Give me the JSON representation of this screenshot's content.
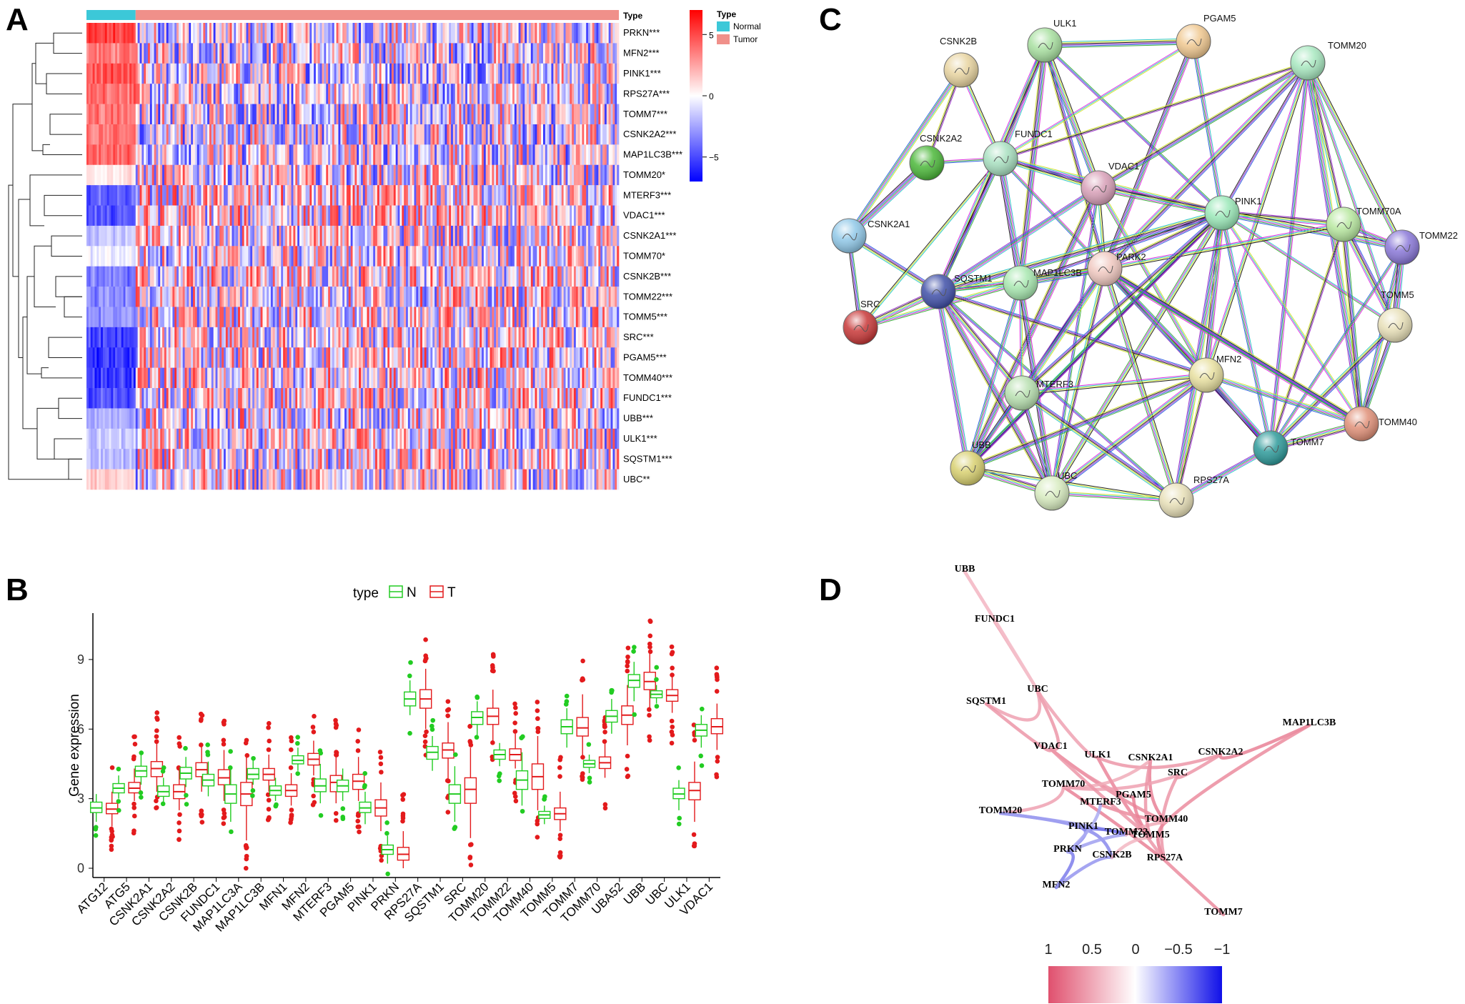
{
  "panels": {
    "a": "A",
    "b": "B",
    "c": "C",
    "d": "D"
  },
  "colors": {
    "normal": "#3CC8D8",
    "tumor": "#F0908A",
    "heat_high": "#FF0000",
    "heat_low": "#0000FF",
    "box_n": "#22CC22",
    "box_t": "#E31A1C",
    "corr_pos": "#E0506E",
    "corr_neg": "#3A3AE0"
  },
  "chart_data": [
    {
      "id": "A",
      "type": "heatmap",
      "rows": [
        "PRKN***",
        "MFN2***",
        "PINK1***",
        "RPS27A***",
        "TOMM7***",
        "CSNK2A2***",
        "MAP1LC3B***",
        "TOMM20*",
        "MTERF3***",
        "VDAC1***",
        "CSNK2A1***",
        "TOMM70*",
        "CSNK2B***",
        "TOMM22***",
        "TOMM5***",
        "SRC***",
        "PGAM5***",
        "TOMM40***",
        "FUNDC1***",
        "UBB***",
        "ULK1***",
        "SQSTM1***",
        "UBC**"
      ],
      "normal_bias": [
        0.85,
        0.6,
        0.75,
        0.7,
        0.65,
        0.6,
        0.7,
        0.15,
        -0.75,
        -0.8,
        -0.25,
        -0.1,
        -0.6,
        -0.55,
        -0.5,
        -0.85,
        -0.9,
        -0.9,
        -0.85,
        -0.35,
        -0.25,
        -0.3,
        0.25
      ],
      "annotation": {
        "title": "Type",
        "groups": [
          "Normal",
          "Tumor"
        ]
      },
      "colorbar": {
        "ticks": [
          "5",
          "0",
          "−5"
        ],
        "range": [
          -7,
          7
        ]
      }
    },
    {
      "id": "B",
      "type": "box",
      "legend_title": "type",
      "legend_entries": [
        "N",
        "T"
      ],
      "ylabel": "Gene expression",
      "ylim": [
        -0.4,
        11
      ],
      "yticks": [
        "0",
        "3",
        "6",
        "9"
      ],
      "categories": [
        "ATG12",
        "ATG5",
        "CSNK2A1",
        "CSNK2A2",
        "CSNK2B",
        "FUNDC1",
        "MAP1LC3A",
        "MAP1LC3B",
        "MFN1",
        "MFN2",
        "MTERF3",
        "PGAM5",
        "PINK1",
        "PRKN",
        "RPS27A",
        "SQSTM1",
        "SRC",
        "TOMM20",
        "TOMM22",
        "TOMM40",
        "TOMM5",
        "TOMM7",
        "TOMM70",
        "UBA52",
        "UBB",
        "UBC",
        "ULK1",
        "VDAC1"
      ],
      "series": [
        {
          "name": "N",
          "stats": [
            [
              2.0,
              2.4,
              2.6,
              2.85,
              3.2
            ],
            [
              3.0,
              3.25,
              3.45,
              3.65,
              4.0
            ],
            [
              3.6,
              3.95,
              4.2,
              4.4,
              4.9
            ],
            [
              2.8,
              3.1,
              3.3,
              3.55,
              3.9
            ],
            [
              3.5,
              3.85,
              4.1,
              4.35,
              4.8
            ],
            [
              3.1,
              3.55,
              3.8,
              4.05,
              4.6
            ],
            [
              2.0,
              2.8,
              3.2,
              3.6,
              4.3
            ],
            [
              3.6,
              3.85,
              4.05,
              4.3,
              4.7
            ],
            [
              2.9,
              3.15,
              3.35,
              3.55,
              3.9
            ],
            [
              4.2,
              4.5,
              4.65,
              4.85,
              5.2
            ],
            [
              2.8,
              3.3,
              3.55,
              3.85,
              4.5
            ],
            [
              2.9,
              3.3,
              3.55,
              3.8,
              4.3
            ],
            [
              1.9,
              2.4,
              2.6,
              2.85,
              3.3
            ],
            [
              0.2,
              0.6,
              0.8,
              1.0,
              1.4
            ],
            [
              6.6,
              7.0,
              7.3,
              7.6,
              8.1
            ],
            [
              4.2,
              4.7,
              5.0,
              5.25,
              5.7
            ],
            [
              2.0,
              2.8,
              3.2,
              3.6,
              4.4
            ],
            [
              5.7,
              6.2,
              6.5,
              6.75,
              7.2
            ],
            [
              4.4,
              4.7,
              4.9,
              5.1,
              5.4
            ],
            [
              2.7,
              3.4,
              3.8,
              4.2,
              5.0
            ],
            [
              1.9,
              2.15,
              2.3,
              2.45,
              2.7
            ],
            [
              5.2,
              5.8,
              6.1,
              6.4,
              6.9
            ],
            [
              4.1,
              4.35,
              4.5,
              4.65,
              4.9
            ],
            [
              5.8,
              6.3,
              6.55,
              6.8,
              7.3
            ],
            [
              7.2,
              7.8,
              8.1,
              8.35,
              8.9
            ],
            [
              7.1,
              7.35,
              7.5,
              7.65,
              7.9
            ],
            [
              2.5,
              3.0,
              3.2,
              3.45,
              3.8
            ],
            [
              5.2,
              5.7,
              5.95,
              6.2,
              6.6
            ]
          ]
        },
        {
          "name": "T",
          "stats": [
            [
              1.8,
              2.35,
              2.55,
              2.8,
              3.3
            ],
            [
              2.9,
              3.25,
              3.45,
              3.7,
              4.3
            ],
            [
              3.3,
              3.95,
              4.3,
              4.6,
              5.4
            ],
            [
              2.5,
              3.0,
              3.3,
              3.6,
              4.3
            ],
            [
              3.3,
              3.95,
              4.25,
              4.55,
              5.3
            ],
            [
              2.9,
              3.6,
              3.9,
              4.25,
              5.1
            ],
            [
              1.2,
              2.7,
              3.2,
              3.7,
              4.8
            ],
            [
              3.3,
              3.8,
              4.05,
              4.3,
              4.9
            ],
            [
              2.7,
              3.1,
              3.35,
              3.6,
              4.1
            ],
            [
              4.0,
              4.45,
              4.7,
              4.95,
              5.5
            ],
            [
              2.8,
              3.3,
              3.7,
              4.0,
              4.8
            ],
            [
              2.9,
              3.4,
              3.75,
              4.05,
              4.8
            ],
            [
              1.6,
              2.25,
              2.6,
              2.95,
              3.7
            ],
            [
              0.0,
              0.35,
              0.6,
              0.9,
              1.6
            ],
            [
              6.0,
              6.9,
              7.3,
              7.7,
              8.6
            ],
            [
              3.8,
              4.75,
              5.1,
              5.4,
              6.3
            ],
            [
              1.3,
              2.8,
              3.4,
              3.9,
              5.2
            ],
            [
              5.5,
              6.2,
              6.55,
              6.9,
              7.7
            ],
            [
              4.3,
              4.65,
              4.9,
              5.15,
              5.8
            ],
            [
              2.5,
              3.4,
              3.95,
              4.5,
              5.7
            ],
            [
              1.6,
              2.1,
              2.35,
              2.6,
              3.3
            ],
            [
              4.8,
              5.7,
              6.05,
              6.5,
              7.5
            ],
            [
              3.9,
              4.3,
              4.55,
              4.8,
              5.4
            ],
            [
              5.3,
              6.2,
              6.6,
              7.0,
              7.9
            ],
            [
              6.9,
              7.7,
              8.05,
              8.45,
              9.3
            ],
            [
              6.7,
              7.2,
              7.45,
              7.7,
              8.3
            ],
            [
              2.0,
              2.95,
              3.35,
              3.7,
              4.6
            ],
            [
              5.1,
              5.8,
              6.1,
              6.45,
              7.1
            ]
          ]
        }
      ]
    },
    {
      "id": "C",
      "type": "network",
      "nodes": [
        {
          "name": "CSNK2B",
          "color": "#E8D4A0"
        },
        {
          "name": "ULK1",
          "color": "#A8E0A0"
        },
        {
          "name": "PGAM5",
          "color": "#F0C890"
        },
        {
          "name": "TOMM20",
          "color": "#A8E8C0"
        },
        {
          "name": "CSNK2A2",
          "color": "#4CB83A"
        },
        {
          "name": "FUNDC1",
          "color": "#A8E0C0"
        },
        {
          "name": "VDAC1",
          "color": "#D8A0B8"
        },
        {
          "name": "PINK1",
          "color": "#9AE8B8"
        },
        {
          "name": "TOMM70A",
          "color": "#B8E8A0"
        },
        {
          "name": "TOMM22",
          "color": "#8A78D8"
        },
        {
          "name": "CSNK2A1",
          "color": "#90C8E8"
        },
        {
          "name": "SQSTM1",
          "color": "#4050A8"
        },
        {
          "name": "MAP1LC3B",
          "color": "#A8E8B0"
        },
        {
          "name": "PARK2",
          "color": "#F0C8C0"
        },
        {
          "name": "TOMM5",
          "color": "#E8E0B8"
        },
        {
          "name": "SRC",
          "color": "#C83838"
        },
        {
          "name": "MFN2",
          "color": "#E8E0A0"
        },
        {
          "name": "MTERF3",
          "color": "#B8E0B0"
        },
        {
          "name": "TOMM40",
          "color": "#E09078"
        },
        {
          "name": "TOMM7",
          "color": "#2E9A9A"
        },
        {
          "name": "UBB",
          "color": "#D8D070"
        },
        {
          "name": "UBC",
          "color": "#D8ECC0"
        },
        {
          "name": "RPS27A",
          "color": "#E8E0B8"
        }
      ]
    },
    {
      "id": "D",
      "type": "network",
      "nodes": [
        "UBB",
        "FUNDC1",
        "SQSTM1",
        "UBC",
        "MAP1LC3B",
        "VDAC1",
        "ULK1",
        "CSNK2A1",
        "CSNK2A2",
        "SRC",
        "TOMM70",
        "MTERF3",
        "PGAM5",
        "TOMM20",
        "PINK1",
        "TOMM22",
        "TOMM40",
        "TOMM5",
        "PRKN",
        "CSNK2B",
        "RPS27A",
        "MFN2",
        "TOMM7"
      ],
      "colorbar": {
        "ticks": [
          "1",
          "0.5",
          "0",
          "−0.5",
          "−1"
        ],
        "range": [
          1,
          -1
        ]
      }
    }
  ]
}
